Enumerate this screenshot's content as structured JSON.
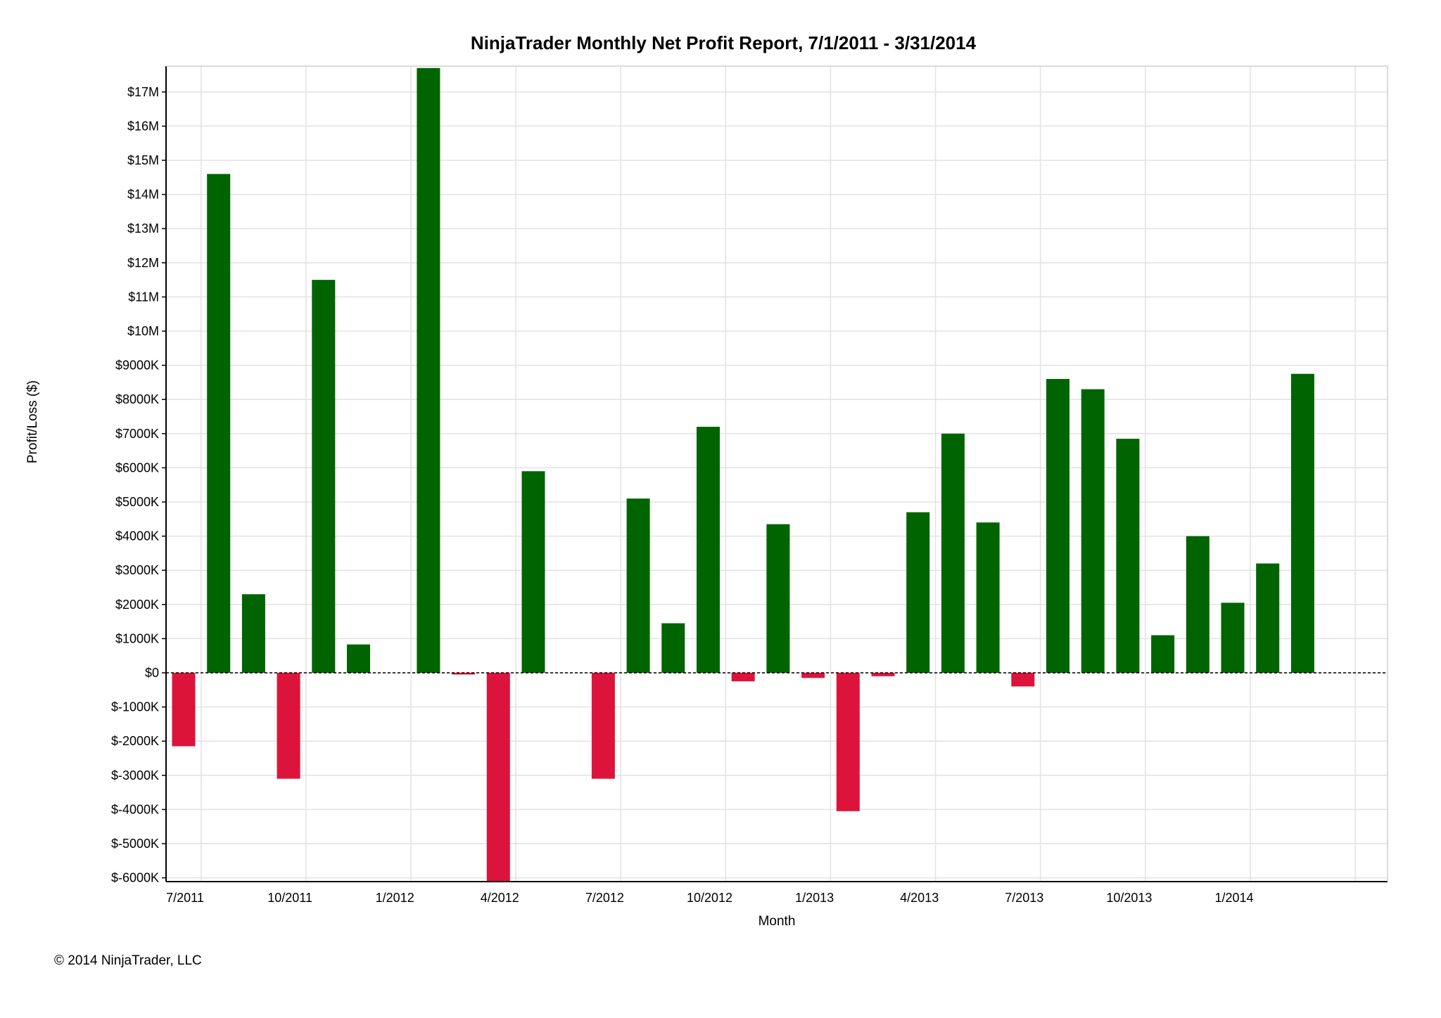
{
  "chart_data": {
    "type": "bar",
    "title": "NinjaTrader Monthly Net Profit Report, 7/1/2011 - 3/31/2014",
    "xlabel": "Month",
    "ylabel": "Profit/Loss ($)",
    "categories": [
      "7/2011",
      "8/2011",
      "9/2011",
      "10/2011",
      "11/2011",
      "12/2011",
      "1/2012",
      "2/2012",
      "3/2012",
      "4/2012",
      "5/2012",
      "6/2012",
      "7/2012",
      "8/2012",
      "9/2012",
      "10/2012",
      "11/2012",
      "12/2012",
      "1/2013",
      "2/2013",
      "3/2013",
      "4/2013",
      "5/2013",
      "6/2013",
      "7/2013",
      "8/2013",
      "9/2013",
      "10/2013",
      "11/2013",
      "12/2013",
      "1/2014",
      "2/2014",
      "3/2014"
    ],
    "values": [
      -2150000,
      14600000,
      2300000,
      -3100000,
      11500000,
      830000,
      0,
      17700000,
      -50000,
      -6100000,
      5900000,
      0,
      -3100000,
      5100000,
      1450000,
      7200000,
      -250000,
      4350000,
      -150000,
      -4050000,
      -100000,
      4700000,
      7000000,
      4400000,
      -400000,
      8600000,
      8300000,
      6850000,
      1100000,
      4000000,
      2050000,
      3200000,
      8750000
    ],
    "x_tick_labels": [
      "7/2011",
      "10/2011",
      "1/2012",
      "4/2012",
      "7/2012",
      "10/2012",
      "1/2013",
      "4/2013",
      "7/2013",
      "10/2013",
      "1/2014"
    ],
    "y_tick_labels": [
      "$17M",
      "$16M",
      "$15M",
      "$14M",
      "$13M",
      "$12M",
      "$11M",
      "$10M",
      "$9000K",
      "$8000K",
      "$7000K",
      "$6000K",
      "$5000K",
      "$4000K",
      "$3000K",
      "$2000K",
      "$1000K",
      "$0",
      "$-1000K",
      "$-2000K",
      "$-3000K",
      "$-4000K",
      "$-5000K",
      "$-6000K"
    ],
    "ylim": [
      -6000000,
      17700000
    ],
    "grid": true,
    "positive_color": "#006400",
    "negative_color": "#dc143c",
    "zero_line": "dashed"
  },
  "footer": {
    "copyright": "© 2014 NinjaTrader, LLC"
  }
}
